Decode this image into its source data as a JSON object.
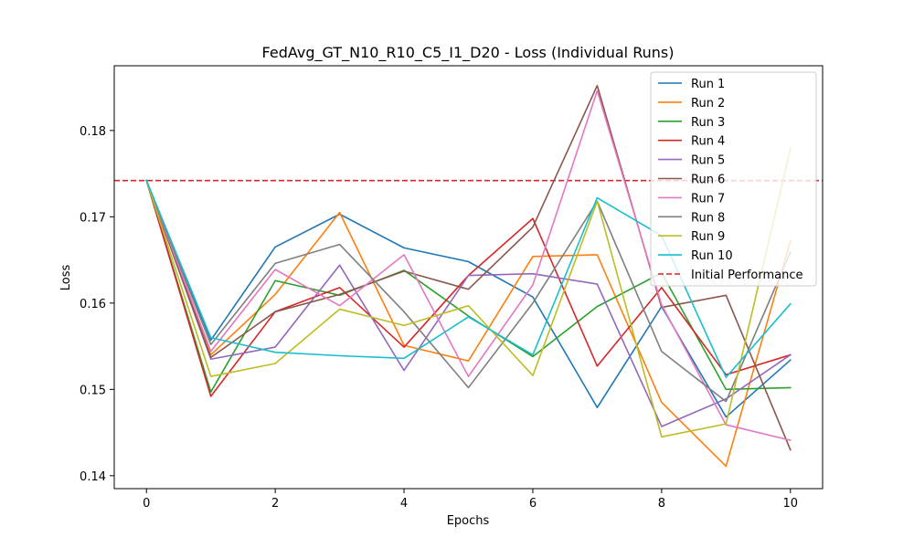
{
  "chart_data": {
    "type": "line",
    "title": "FedAvg_GT_N10_R10_C5_I1_D20 - Loss (Individual Runs)",
    "xlabel": "Epochs",
    "ylabel": "Loss",
    "xlim": [
      -0.5,
      10.5
    ],
    "ylim": [
      0.1385,
      0.1875
    ],
    "xticks": [
      0,
      2,
      4,
      6,
      8,
      10
    ],
    "yticks": [
      0.14,
      0.15,
      0.16,
      0.17,
      0.18
    ],
    "ytick_labels": [
      "0.14",
      "0.15",
      "0.16",
      "0.17",
      "0.18"
    ],
    "grid": false,
    "legend_position": "top-right",
    "x": [
      0,
      1,
      2,
      3,
      4,
      5,
      6,
      7,
      8,
      9,
      10
    ],
    "series": [
      {
        "name": "Run 1",
        "color": "#1f77b4",
        "values": [
          0.1742,
          0.1557,
          0.1665,
          0.1703,
          0.1664,
          0.1648,
          0.1607,
          0.1479,
          0.1596,
          0.1468,
          0.1534
        ]
      },
      {
        "name": "Run 2",
        "color": "#ff7f0e",
        "values": [
          0.1742,
          0.154,
          0.161,
          0.1705,
          0.1551,
          0.1533,
          0.1654,
          0.1656,
          0.1485,
          0.1411,
          0.1672
        ]
      },
      {
        "name": "Run 3",
        "color": "#2ca02c",
        "values": [
          0.1742,
          0.1497,
          0.1626,
          0.1609,
          0.1638,
          0.1585,
          0.1538,
          0.1596,
          0.1635,
          0.15,
          0.1502
        ]
      },
      {
        "name": "Run 4",
        "color": "#d62728",
        "values": [
          0.1742,
          0.1492,
          0.159,
          0.1618,
          0.1549,
          0.1632,
          0.1698,
          0.1527,
          0.1618,
          0.1517,
          0.154
        ]
      },
      {
        "name": "Run 5",
        "color": "#9467bd",
        "values": [
          0.1742,
          0.1535,
          0.1549,
          0.1644,
          0.1522,
          0.1632,
          0.1634,
          0.1622,
          0.1457,
          0.1489,
          0.154
        ]
      },
      {
        "name": "Run 6",
        "color": "#8c564b",
        "values": [
          0.1742,
          0.1537,
          0.159,
          0.161,
          0.1637,
          0.1616,
          0.1688,
          0.1852,
          0.1595,
          0.1609,
          0.143
        ]
      },
      {
        "name": "Run 7",
        "color": "#e377c2",
        "values": [
          0.1742,
          0.1544,
          0.1639,
          0.1597,
          0.1656,
          0.1515,
          0.1621,
          0.1846,
          0.1598,
          0.1459,
          0.1441
        ]
      },
      {
        "name": "Run 8",
        "color": "#7f7f7f",
        "values": [
          0.1742,
          0.1552,
          0.1646,
          0.1668,
          0.159,
          0.1502,
          0.16,
          0.1718,
          0.1544,
          0.1486,
          0.1659
        ]
      },
      {
        "name": "Run 9",
        "color": "#bcbd22",
        "values": [
          0.1742,
          0.1515,
          0.153,
          0.1593,
          0.1574,
          0.1597,
          0.1516,
          0.1718,
          0.1445,
          0.146,
          0.1779
        ]
      },
      {
        "name": "Run 10",
        "color": "#17becf",
        "values": [
          0.1742,
          0.156,
          0.1543,
          0.1539,
          0.1536,
          0.1584,
          0.154,
          0.1722,
          0.1678,
          0.1514,
          0.1599
        ]
      }
    ],
    "reference_line": {
      "name": "Initial Performance",
      "value": 0.1742,
      "color": "#d62728",
      "style": "dashed"
    }
  }
}
